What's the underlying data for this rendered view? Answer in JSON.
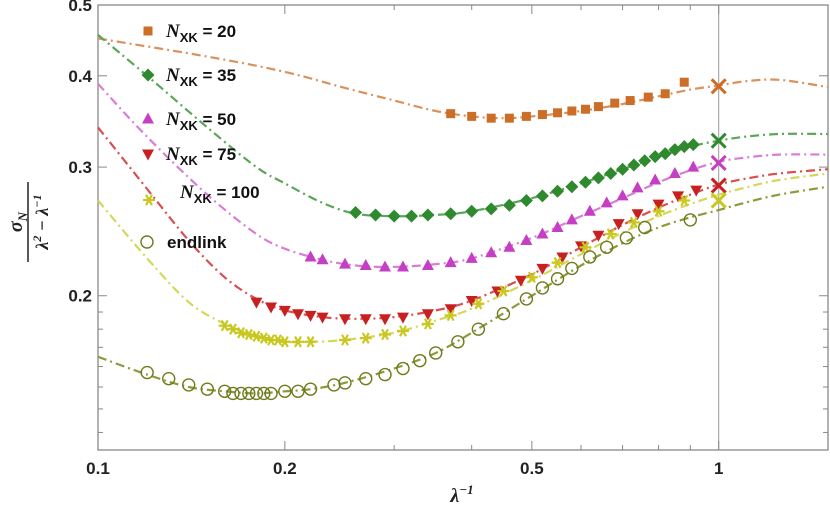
{
  "chart_data": {
    "type": "scatter",
    "x_scale": "log",
    "y_scale": "log",
    "xlim": [
      0.1,
      1.5
    ],
    "ylim": [
      0.123,
      0.5
    ],
    "xlabel": "λ⁻¹",
    "ylabel": "σN / (λ² − λ⁻¹)",
    "x_ticks": [
      {
        "value": 0.1,
        "label": "0.1"
      },
      {
        "value": 0.2,
        "label": "0.2"
      },
      {
        "value": 0.5,
        "label": "0.5"
      },
      {
        "value": 1,
        "label": "1"
      }
    ],
    "y_ticks": [
      {
        "value": 0.2,
        "label": "0.2"
      },
      {
        "value": 0.3,
        "label": "0.3"
      },
      {
        "value": 0.4,
        "label": "0.4"
      },
      {
        "value": 0.5,
        "label": "0.5"
      }
    ],
    "vertical_line_x": 1.0,
    "legend_position": "top-left",
    "series": [
      {
        "name": "N_XK = 20",
        "legend_main": "N",
        "legend_sub": "XK",
        "legend_value": " = 20",
        "color": "#cc6d28",
        "fit_color": "#d9925c",
        "marker": "square",
        "x": [
          0.37,
          0.4,
          0.43,
          0.46,
          0.49,
          0.52,
          0.55,
          0.58,
          0.61,
          0.64,
          0.68,
          0.72,
          0.77,
          0.82,
          0.88
        ],
        "y": [
          0.355,
          0.352,
          0.35,
          0.35,
          0.352,
          0.354,
          0.356,
          0.358,
          0.36,
          0.363,
          0.367,
          0.37,
          0.374,
          0.378,
          0.392
        ],
        "x_end": 1.0,
        "y_end": 0.387,
        "fit_x": [
          0.1,
          0.15,
          0.2,
          0.25,
          0.3,
          0.35,
          0.4,
          0.45,
          0.5,
          0.6,
          0.7,
          0.8,
          0.9,
          1.0,
          1.1,
          1.25,
          1.5
        ],
        "fit_y": [
          0.45,
          0.425,
          0.405,
          0.385,
          0.37,
          0.358,
          0.352,
          0.35,
          0.352,
          0.358,
          0.366,
          0.375,
          0.383,
          0.388,
          0.393,
          0.395,
          0.386
        ]
      },
      {
        "name": "N_XK = 35",
        "legend_main": "N",
        "legend_sub": "XK",
        "legend_value": " = 35",
        "color": "#2f8a2f",
        "fit_color": "#5aa65a",
        "marker": "diamond",
        "x": [
          0.26,
          0.28,
          0.3,
          0.32,
          0.34,
          0.37,
          0.4,
          0.43,
          0.46,
          0.49,
          0.52,
          0.55,
          0.58,
          0.61,
          0.64,
          0.67,
          0.7,
          0.73,
          0.76,
          0.79,
          0.82,
          0.85,
          0.88,
          0.91
        ],
        "y": [
          0.26,
          0.258,
          0.257,
          0.257,
          0.258,
          0.259,
          0.261,
          0.263,
          0.266,
          0.27,
          0.274,
          0.278,
          0.282,
          0.286,
          0.29,
          0.294,
          0.298,
          0.302,
          0.306,
          0.31,
          0.313,
          0.317,
          0.32,
          0.322
        ],
        "x_end": 1.0,
        "y_end": 0.326,
        "fit_x": [
          0.1,
          0.12,
          0.15,
          0.18,
          0.2,
          0.23,
          0.26,
          0.3,
          0.35,
          0.4,
          0.5,
          0.6,
          0.7,
          0.8,
          0.9,
          1.0,
          1.1,
          1.25,
          1.5
        ],
        "fit_y": [
          0.455,
          0.4,
          0.34,
          0.3,
          0.285,
          0.268,
          0.259,
          0.257,
          0.258,
          0.261,
          0.272,
          0.285,
          0.298,
          0.31,
          0.32,
          0.326,
          0.33,
          0.333,
          0.333
        ]
      },
      {
        "name": "N_XK = 50",
        "legend_main": "N",
        "legend_sub": "XK",
        "legend_value": " = 50",
        "color": "#c43fc4",
        "fit_color": "#d77fd7",
        "marker": "triangle-up",
        "x": [
          0.22,
          0.23,
          0.25,
          0.27,
          0.29,
          0.31,
          0.34,
          0.37,
          0.4,
          0.43,
          0.46,
          0.49,
          0.52,
          0.55,
          0.58,
          0.62,
          0.66,
          0.7,
          0.74,
          0.79,
          0.85,
          0.91
        ],
        "y": [
          0.226,
          0.224,
          0.221,
          0.22,
          0.219,
          0.219,
          0.22,
          0.222,
          0.225,
          0.229,
          0.233,
          0.238,
          0.243,
          0.248,
          0.254,
          0.261,
          0.268,
          0.274,
          0.281,
          0.288,
          0.294,
          0.3
        ],
        "x_end": 1.0,
        "y_end": 0.304,
        "fit_x": [
          0.1,
          0.12,
          0.15,
          0.18,
          0.2,
          0.23,
          0.26,
          0.3,
          0.35,
          0.4,
          0.5,
          0.6,
          0.7,
          0.8,
          0.9,
          1.0,
          1.1,
          1.25,
          1.5
        ],
        "fit_y": [
          0.39,
          0.33,
          0.275,
          0.243,
          0.232,
          0.224,
          0.22,
          0.219,
          0.221,
          0.225,
          0.24,
          0.257,
          0.272,
          0.286,
          0.297,
          0.305,
          0.309,
          0.312,
          0.312
        ]
      },
      {
        "name": "N_XK = 75",
        "legend_main": "N",
        "legend_sub": "XK",
        "legend_value": " = 75",
        "color": "#c82020",
        "fit_color": "#d95050",
        "marker": "triangle-down",
        "x": [
          0.18,
          0.19,
          0.2,
          0.21,
          0.22,
          0.23,
          0.25,
          0.27,
          0.29,
          0.31,
          0.34,
          0.37,
          0.4,
          0.44,
          0.48,
          0.52,
          0.56,
          0.6,
          0.64,
          0.69,
          0.74,
          0.8,
          0.86,
          0.92
        ],
        "y": [
          0.196,
          0.193,
          0.191,
          0.189,
          0.188,
          0.187,
          0.186,
          0.186,
          0.186,
          0.187,
          0.189,
          0.192,
          0.197,
          0.203,
          0.21,
          0.218,
          0.226,
          0.234,
          0.242,
          0.251,
          0.259,
          0.267,
          0.274,
          0.279
        ],
        "x_end": 1.0,
        "y_end": 0.283,
        "fit_x": [
          0.1,
          0.12,
          0.14,
          0.16,
          0.18,
          0.2,
          0.23,
          0.26,
          0.3,
          0.35,
          0.4,
          0.5,
          0.6,
          0.7,
          0.8,
          0.9,
          1.0,
          1.1,
          1.25,
          1.5
        ],
        "fit_y": [
          0.34,
          0.28,
          0.238,
          0.212,
          0.198,
          0.191,
          0.187,
          0.186,
          0.187,
          0.191,
          0.197,
          0.214,
          0.233,
          0.25,
          0.264,
          0.275,
          0.284,
          0.289,
          0.294,
          0.298
        ]
      },
      {
        "name": "N_XK = 100",
        "legend_main": "N",
        "legend_sub": "XK",
        "legend_value": " = 100",
        "color": "#c8c820",
        "fit_color": "#d6d65a",
        "marker": "star",
        "x": [
          0.16,
          0.165,
          0.17,
          0.175,
          0.18,
          0.185,
          0.19,
          0.195,
          0.2,
          0.21,
          0.22,
          0.25,
          0.27,
          0.29,
          0.31,
          0.34,
          0.37,
          0.41,
          0.45,
          0.5,
          0.55,
          0.61,
          0.67,
          0.73,
          0.8,
          0.88
        ],
        "y": [
          0.182,
          0.18,
          0.178,
          0.177,
          0.176,
          0.175,
          0.174,
          0.174,
          0.173,
          0.173,
          0.173,
          0.174,
          0.175,
          0.177,
          0.179,
          0.183,
          0.188,
          0.195,
          0.203,
          0.212,
          0.222,
          0.233,
          0.243,
          0.252,
          0.261,
          0.27
        ],
        "x_end": 1.0,
        "y_end": 0.27,
        "fit_x": [
          0.1,
          0.12,
          0.14,
          0.16,
          0.18,
          0.2,
          0.22,
          0.25,
          0.3,
          0.35,
          0.4,
          0.5,
          0.6,
          0.7,
          0.8,
          0.9,
          1.0,
          1.1,
          1.25,
          1.5
        ],
        "fit_y": [
          0.27,
          0.225,
          0.196,
          0.183,
          0.176,
          0.173,
          0.173,
          0.174,
          0.178,
          0.185,
          0.192,
          0.21,
          0.228,
          0.244,
          0.257,
          0.267,
          0.275,
          0.281,
          0.288,
          0.294
        ]
      },
      {
        "name": "endlink",
        "legend_main": "endlink",
        "legend_sub": "",
        "legend_value": "",
        "color": "#6f7a1c",
        "fit_color": "#8e9a3a",
        "marker": "circle-open",
        "x": [
          0.12,
          0.13,
          0.14,
          0.15,
          0.16,
          0.165,
          0.17,
          0.175,
          0.18,
          0.185,
          0.19,
          0.2,
          0.21,
          0.22,
          0.24,
          0.25,
          0.27,
          0.29,
          0.31,
          0.33,
          0.35,
          0.38,
          0.41,
          0.45,
          0.49,
          0.52,
          0.55,
          0.58,
          0.62,
          0.66,
          0.71,
          0.76
        ],
        "y": [
          0.157,
          0.154,
          0.151,
          0.149,
          0.148,
          0.147,
          0.147,
          0.147,
          0.147,
          0.147,
          0.147,
          0.148,
          0.148,
          0.149,
          0.151,
          0.152,
          0.154,
          0.156,
          0.159,
          0.163,
          0.167,
          0.173,
          0.18,
          0.189,
          0.198,
          0.205,
          0.211,
          0.218,
          0.226,
          0.233,
          0.24,
          0.248
        ],
        "x_end": 0.9,
        "y_end": 0.254,
        "fit_x": [
          0.1,
          0.12,
          0.14,
          0.16,
          0.18,
          0.2,
          0.22,
          0.25,
          0.3,
          0.35,
          0.4,
          0.5,
          0.6,
          0.7,
          0.8,
          0.9,
          1.0,
          1.1,
          1.25,
          1.5
        ],
        "fit_y": [
          0.165,
          0.156,
          0.15,
          0.148,
          0.147,
          0.148,
          0.149,
          0.152,
          0.159,
          0.167,
          0.178,
          0.2,
          0.22,
          0.236,
          0.248,
          0.256,
          0.262,
          0.268,
          0.275,
          0.282
        ]
      }
    ]
  }
}
